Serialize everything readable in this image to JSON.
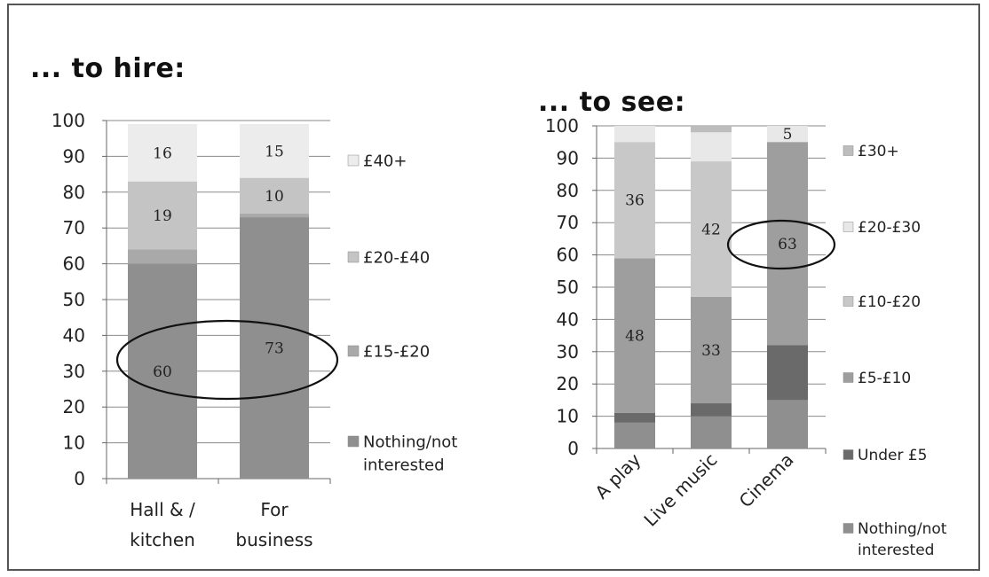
{
  "chart_data": [
    {
      "type": "bar",
      "stacked": true,
      "title": "... to hire:",
      "categories": [
        "Hall & / kitchen",
        "For business"
      ],
      "category_lines": [
        [
          "Hall & /",
          "kitchen"
        ],
        [
          "For",
          "business"
        ]
      ],
      "ylim": [
        0,
        100
      ],
      "yticks": [
        "0",
        "10",
        "20",
        "30",
        "40",
        "50",
        "60",
        "70",
        "80",
        "90",
        "100"
      ],
      "grid": true,
      "legend_position": "right",
      "series": [
        {
          "name": "Nothing/not interested",
          "legend_lines": [
            "Nothing/not",
            "interested"
          ],
          "values": [
            60,
            73
          ],
          "color": "#8f8f8f"
        },
        {
          "name": "£15-£20",
          "legend_lines": [
            "£15-£20"
          ],
          "values": [
            4,
            1
          ],
          "color": "#a9a9a9"
        },
        {
          "name": "£20-£40",
          "legend_lines": [
            "£20-£40"
          ],
          "values": [
            19,
            10
          ],
          "color": "#c4c4c4"
        },
        {
          "name": "£40+",
          "legend_lines": [
            "£40+"
          ],
          "values": [
            16,
            15
          ],
          "color": "#ececec"
        }
      ],
      "data_labels": [
        {
          "series": 0,
          "category": 0,
          "text": "60"
        },
        {
          "series": 0,
          "category": 1,
          "text": "73"
        },
        {
          "series": 2,
          "category": 0,
          "text": "19"
        },
        {
          "series": 2,
          "category": 1,
          "text": "10"
        },
        {
          "series": 3,
          "category": 0,
          "text": "16"
        },
        {
          "series": 3,
          "category": 1,
          "text": "15"
        }
      ]
    },
    {
      "type": "bar",
      "stacked": true,
      "title": "... to see:",
      "categories": [
        "A play",
        "Live music",
        "Cinema"
      ],
      "ylim": [
        0,
        100
      ],
      "yticks": [
        "0",
        "10",
        "20",
        "30",
        "40",
        "50",
        "60",
        "70",
        "80",
        "90",
        "100"
      ],
      "grid": true,
      "legend_position": "right",
      "series": [
        {
          "name": "Nothing/not interested",
          "legend_lines": [
            "Nothing/not",
            "interested"
          ],
          "values": [
            8,
            10,
            15
          ],
          "color": "#8f8f8f"
        },
        {
          "name": "Under £5",
          "legend_lines": [
            "Under £5"
          ],
          "values": [
            3,
            4,
            17
          ],
          "color": "#6a6a6a"
        },
        {
          "name": "£5-£10",
          "legend_lines": [
            "£5-£10"
          ],
          "values": [
            48,
            33,
            63
          ],
          "color": "#9e9e9e"
        },
        {
          "name": "£10-£20",
          "legend_lines": [
            "£10-£20"
          ],
          "values": [
            36,
            42,
            0
          ],
          "color": "#c8c8c8"
        },
        {
          "name": "£20-£30",
          "legend_lines": [
            "£20-£30"
          ],
          "values": [
            5,
            9,
            5
          ],
          "color": "#e8e8e8"
        },
        {
          "name": "£30+",
          "legend_lines": [
            "£30+"
          ],
          "values": [
            0,
            2,
            0
          ],
          "color": "#bdbdbd"
        }
      ],
      "data_labels": [
        {
          "series": 2,
          "category": 0,
          "text": "48"
        },
        {
          "series": 2,
          "category": 1,
          "text": "33"
        },
        {
          "series": 2,
          "category": 2,
          "text": "63"
        },
        {
          "series": 3,
          "category": 0,
          "text": "36"
        },
        {
          "series": 3,
          "category": 1,
          "text": "42"
        },
        {
          "series": 4,
          "category": 2,
          "text": "5"
        }
      ]
    }
  ]
}
